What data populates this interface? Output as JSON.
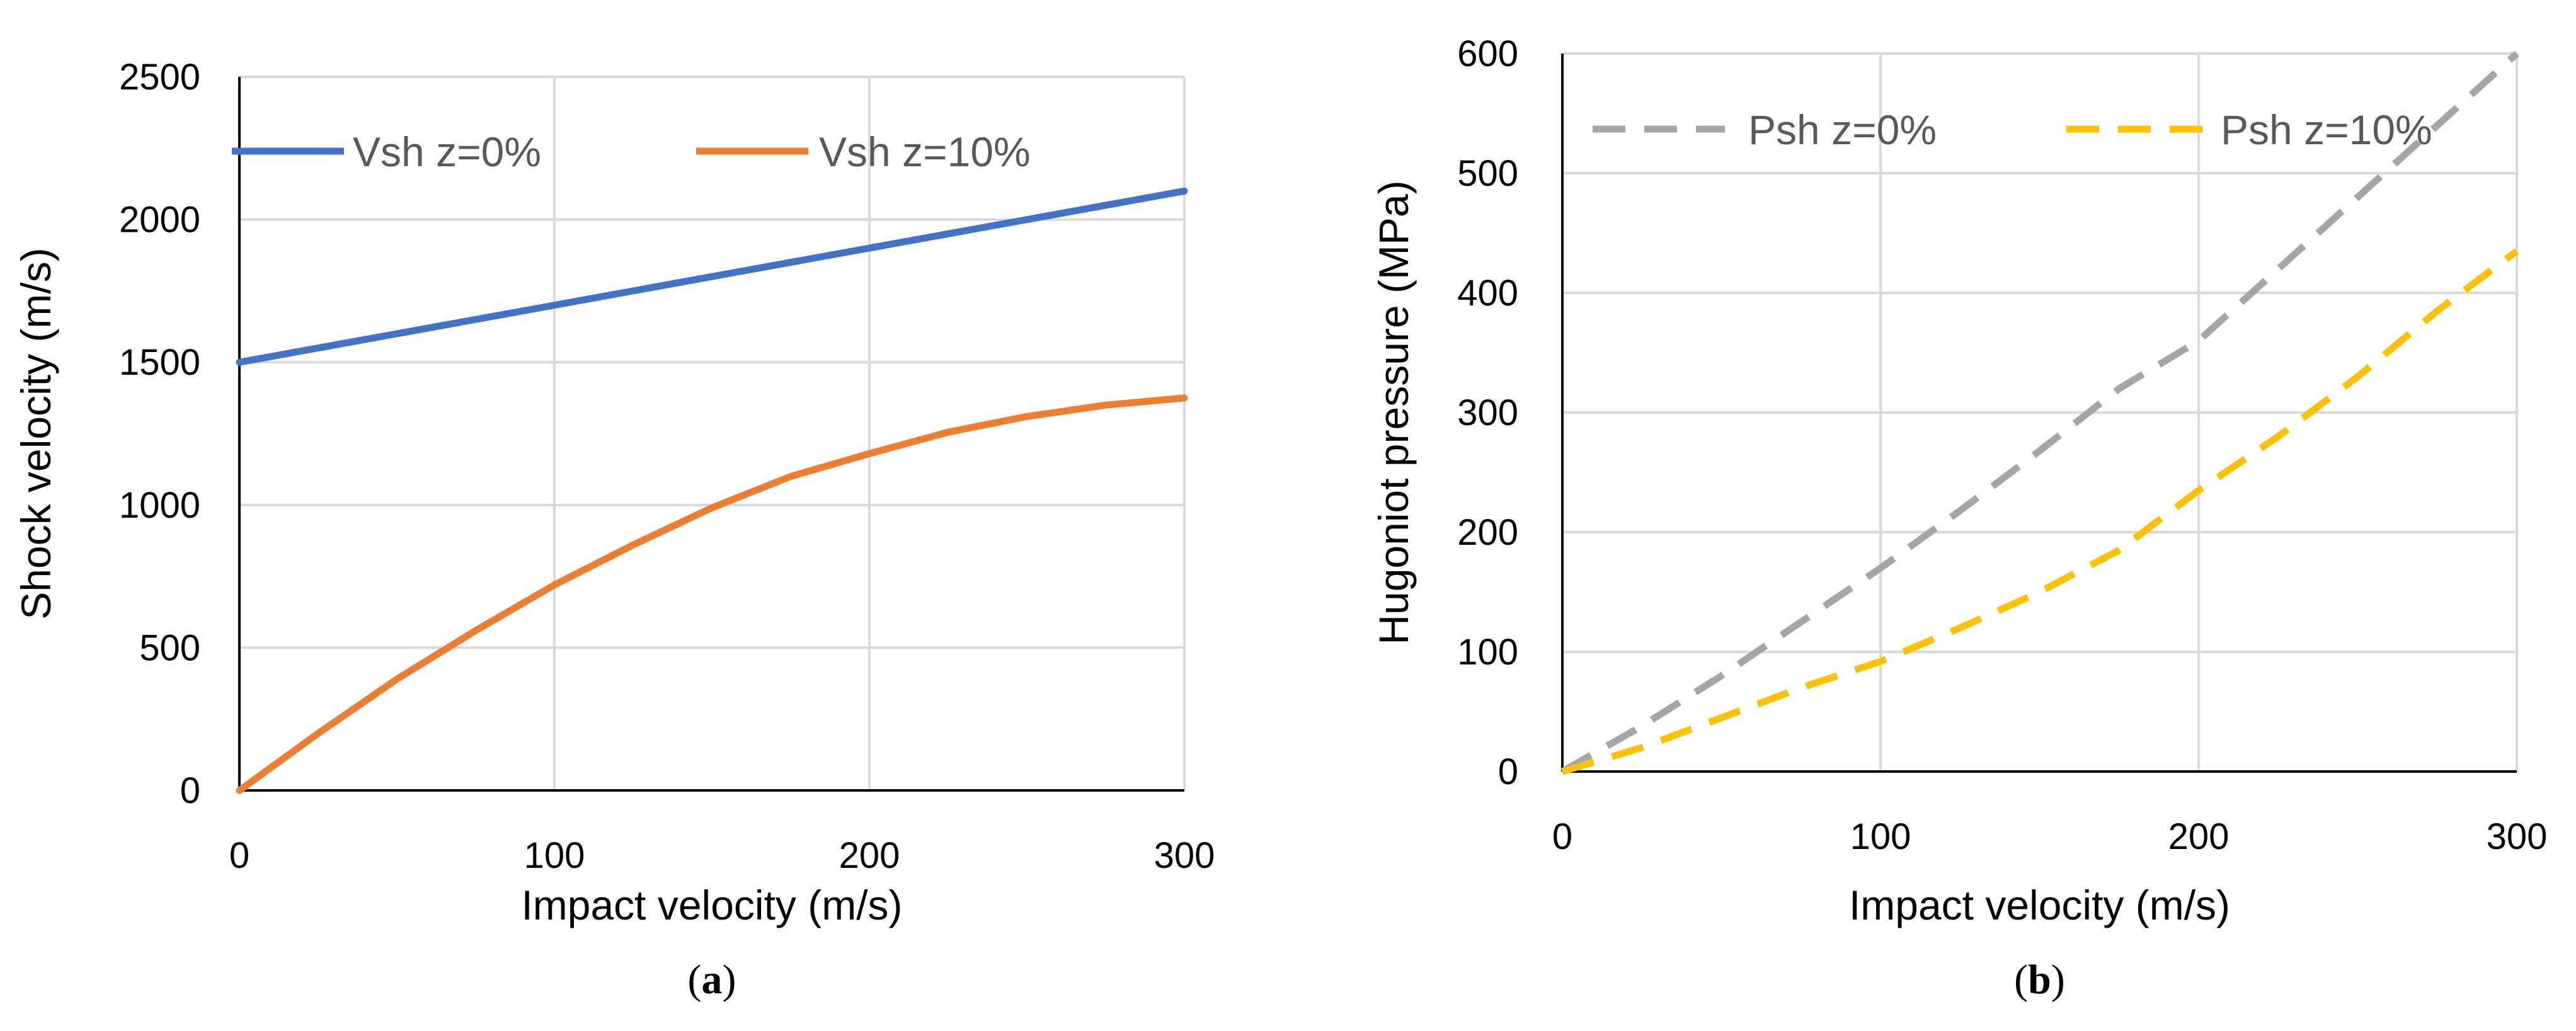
{
  "chart_data": [
    {
      "type": "line",
      "panel_label": "a",
      "title": "",
      "xlabel": "Impact velocity (m/s)",
      "ylabel": "Shock velocity (m/s)",
      "xlim": [
        0,
        300
      ],
      "ylim": [
        0,
        2500
      ],
      "xticks": [
        0,
        100,
        200,
        300
      ],
      "yticks": [
        0,
        500,
        1000,
        1500,
        2000,
        2500
      ],
      "grid": true,
      "legend_position": "top",
      "series": [
        {
          "name": "Vsh z=0%",
          "color": "#4472c4",
          "dash": "solid",
          "x": [
            0,
            50,
            100,
            150,
            200,
            250,
            300
          ],
          "y": [
            1500,
            1600,
            1700,
            1800,
            1900,
            2000,
            2100
          ]
        },
        {
          "name": "Vsh z=10%",
          "color": "#ed7d31",
          "dash": "solid",
          "x": [
            0,
            25,
            50,
            75,
            100,
            125,
            150,
            175,
            200,
            225,
            250,
            275,
            300
          ],
          "y": [
            0,
            200,
            390,
            560,
            720,
            860,
            990,
            1100,
            1180,
            1255,
            1310,
            1350,
            1375
          ]
        }
      ]
    },
    {
      "type": "line",
      "panel_label": "b",
      "title": "",
      "xlabel": "Impact velocity (m/s)",
      "ylabel": "Hugoniot pressure (MPa)",
      "xlim": [
        0,
        300
      ],
      "ylim": [
        0,
        600
      ],
      "xticks": [
        0,
        100,
        200,
        300
      ],
      "yticks": [
        0,
        100,
        200,
        300,
        400,
        500,
        600
      ],
      "grid": true,
      "legend_position": "top",
      "series": [
        {
          "name": "Psh z=0%",
          "color": "#a5a5a5",
          "dash": "dashed",
          "x": [
            0,
            25,
            50,
            75,
            100,
            125,
            150,
            175,
            200,
            225,
            250,
            275,
            300
          ],
          "y": [
            0,
            38,
            80,
            125,
            170,
            218,
            268,
            320,
            360,
            420,
            480,
            540,
            600
          ]
        },
        {
          "name": "Psh z=10%",
          "color": "#ffc000",
          "dash": "dashed",
          "x": [
            0,
            25,
            50,
            75,
            100,
            125,
            150,
            175,
            200,
            225,
            250,
            275,
            300
          ],
          "y": [
            0,
            20,
            45,
            70,
            92,
            120,
            150,
            185,
            235,
            280,
            330,
            385,
            435
          ]
        }
      ]
    }
  ]
}
